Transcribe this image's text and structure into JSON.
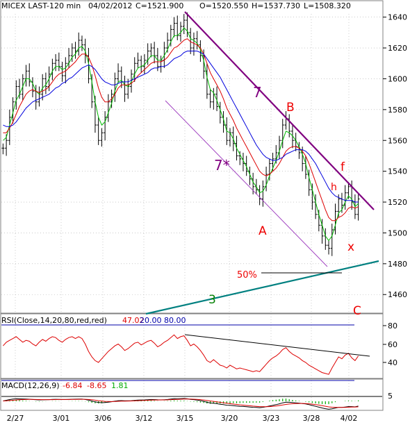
{
  "header": {
    "symbol": "MICEX LAST-120 min",
    "date": "04/02/2012",
    "close": "C=1521.900",
    "open": "O=1520.550",
    "high": "H=1537.730",
    "low": "L=1508.320"
  },
  "colors": {
    "price_bar": "#000000",
    "ma_fast": "#00bb00",
    "ma_mid": "#dd0000",
    "ma_slow": "#0000dd",
    "trendline": "#800080",
    "support_line": "#008080",
    "wave_red": "#ee0000",
    "wave_purple": "#800080",
    "wave_green": "#008000",
    "rsi_line": "#dd0000",
    "macd_a": "#000000",
    "macd_b": "#dd0000",
    "macd_hist": "#00aa00",
    "grid": "#aaaaaa",
    "rsi_band": "#0000aa"
  },
  "annotations": {
    "seven_top": "7",
    "seven_star": "7*",
    "b": "B",
    "a": "A",
    "f": "f",
    "h": "h",
    "x": "x",
    "three": "3",
    "c": "C",
    "fifty": "50%"
  },
  "rsi": {
    "label": "RSI(Close,14,20,80,red,red)",
    "value": "47.02",
    "low": "20.00",
    "high": "80.00",
    "ticks": [
      "80",
      "60",
      "40"
    ]
  },
  "macd": {
    "label": "MACD(12,26,9)",
    "v1": "-6.84",
    "v2": "-8.65",
    "v3": "1.81",
    "tick": "5"
  },
  "chart_data": {
    "type": "line",
    "title": "MICEX LAST-120 min",
    "x_tick_labels": [
      "2/27",
      "3/01",
      "3/06",
      "3/12",
      "3/15",
      "3/20",
      "3/23",
      "3/28",
      "4/02"
    ],
    "y_tick_labels": [
      "1640",
      "1620",
      "1600",
      "1580",
      "1560",
      "1540",
      "1520",
      "1500",
      "1480",
      "1460"
    ],
    "ylim": [
      1452,
      1643
    ],
    "grid": true,
    "series": [
      {
        "kind": "price",
        "values": [
          1555,
          1560,
          1575,
          1585,
          1595,
          1590,
          1600,
          1605,
          1598,
          1592,
          1585,
          1590,
          1600,
          1595,
          1603,
          1610,
          1612,
          1608,
          1602,
          1610,
          1615,
          1620,
          1618,
          1625,
          1622,
          1615,
          1600,
          1585,
          1570,
          1560,
          1565,
          1575,
          1585,
          1590,
          1600,
          1605,
          1598,
          1590,
          1595,
          1603,
          1610,
          1612,
          1608,
          1612,
          1618,
          1620,
          1615,
          1608,
          1612,
          1620,
          1625,
          1632,
          1636,
          1628,
          1634,
          1638,
          1630,
          1620,
          1626,
          1622,
          1615,
          1605,
          1590,
          1585,
          1590,
          1582,
          1575,
          1570,
          1560,
          1565,
          1558,
          1550,
          1548,
          1545,
          1540,
          1535,
          1530,
          1528,
          1522,
          1530,
          1538,
          1545,
          1548,
          1552,
          1560,
          1570,
          1574,
          1566,
          1560,
          1556,
          1552,
          1545,
          1538,
          1528,
          1520,
          1512,
          1505,
          1498,
          1492,
          1490,
          1502,
          1514,
          1522,
          1518,
          1526,
          1530,
          1520,
          1512,
          1522
        ]
      },
      {
        "kind": "ma",
        "name": "",
        "values": [
          1560,
          1562,
          1570,
          1578,
          1586,
          1590,
          1595,
          1600,
          1600,
          1597,
          1592,
          1590,
          1594,
          1596,
          1600,
          1605,
          1608,
          1608,
          1606,
          1607,
          1610,
          1614,
          1616,
          1620,
          1621,
          1618,
          1610,
          1598,
          1585,
          1575,
          1570,
          1572,
          1578,
          1584,
          1592,
          1598,
          1599,
          1596,
          1595,
          1598,
          1603,
          1607,
          1608,
          1609,
          1612,
          1615,
          1615,
          1612,
          1612,
          1615,
          1619,
          1624,
          1628,
          1628,
          1630,
          1633,
          1631,
          1626,
          1625,
          1623,
          1619,
          1612,
          1601,
          1593,
          1591,
          1586,
          1580,
          1574,
          1566,
          1565,
          1561,
          1555,
          1551,
          1547,
          1543,
          1538,
          1533,
          1530,
          1526,
          1527,
          1531,
          1537,
          1542,
          1547,
          1553,
          1560,
          1566,
          1565,
          1563,
          1560,
          1556,
          1551,
          1545,
          1536,
          1528,
          1520,
          1512,
          1505,
          1498,
          1495,
          1498,
          1505,
          1513,
          1515,
          1520,
          1524,
          1522,
          1517,
          1519
        ]
      },
      {
        "kind": "ma",
        "name": "",
        "values": [
          1565,
          1565,
          1568,
          1572,
          1577,
          1582,
          1586,
          1590,
          1592,
          1593,
          1592,
          1591,
          1592,
          1593,
          1595,
          1598,
          1601,
          1603,
          1604,
          1605,
          1607,
          1609,
          1611,
          1614,
          1616,
          1616,
          1614,
          1609,
          1602,
          1594,
          1588,
          1585,
          1585,
          1587,
          1590,
          1594,
          1596,
          1596,
          1596,
          1597,
          1599,
          1602,
          1604,
          1606,
          1608,
          1610,
          1611,
          1611,
          1611,
          1612,
          1614,
          1617,
          1620,
          1621,
          1623,
          1625,
          1626,
          1624,
          1623,
          1622,
          1620,
          1616,
          1610,
          1604,
          1600,
          1596,
          1592,
          1587,
          1581,
          1577,
          1573,
          1568,
          1564,
          1560,
          1556,
          1552,
          1548,
          1544,
          1540,
          1538,
          1537,
          1538,
          1540,
          1542,
          1545,
          1549,
          1553,
          1555,
          1556,
          1556,
          1555,
          1553,
          1550,
          1545,
          1539,
          1533,
          1527,
          1521,
          1515,
          1510,
          1508,
          1508,
          1510,
          1511,
          1513,
          1516,
          1517,
          1516,
          1517
        ]
      },
      {
        "kind": "ma",
        "name": "",
        "values": [
          1570,
          1569,
          1569,
          1570,
          1572,
          1575,
          1578,
          1581,
          1583,
          1585,
          1586,
          1587,
          1588,
          1589,
          1590,
          1592,
          1594,
          1595,
          1597,
          1598,
          1600,
          1601,
          1603,
          1605,
          1607,
          1608,
          1609,
          1608,
          1606,
          1603,
          1600,
          1598,
          1597,
          1596,
          1596,
          1597,
          1598,
          1598,
          1598,
          1599,
          1600,
          1601,
          1602,
          1603,
          1604,
          1606,
          1607,
          1607,
          1608,
          1608,
          1609,
          1611,
          1613,
          1614,
          1615,
          1617,
          1618,
          1618,
          1618,
          1618,
          1617,
          1616,
          1613,
          1610,
          1607,
          1604,
          1601,
          1597,
          1593,
          1589,
          1585,
          1581,
          1577,
          1573,
          1569,
          1565,
          1561,
          1557,
          1554,
          1551,
          1549,
          1548,
          1547,
          1547,
          1548,
          1549,
          1551,
          1552,
          1553,
          1554,
          1554,
          1554,
          1553,
          1551,
          1548,
          1545,
          1541,
          1537,
          1533,
          1529,
          1526,
          1524,
          1523,
          1522,
          1521,
          1521,
          1521,
          1520,
          1520
        ]
      }
    ],
    "rsi_values": [
      58,
      62,
      64,
      66,
      68,
      65,
      62,
      64,
      63,
      60,
      58,
      62,
      65,
      63,
      66,
      68,
      67,
      64,
      62,
      65,
      67,
      68,
      66,
      68,
      66,
      60,
      52,
      46,
      42,
      40,
      44,
      48,
      52,
      55,
      58,
      60,
      57,
      53,
      55,
      58,
      61,
      62,
      59,
      61,
      63,
      64,
      61,
      57,
      59,
      62,
      64,
      67,
      70,
      66,
      68,
      69,
      64,
      58,
      60,
      57,
      53,
      48,
      42,
      40,
      43,
      40,
      37,
      36,
      34,
      37,
      35,
      33,
      34,
      33,
      32,
      31,
      30,
      31,
      30,
      34,
      38,
      42,
      45,
      47,
      50,
      54,
      56,
      52,
      49,
      47,
      45,
      42,
      40,
      37,
      35,
      33,
      31,
      29,
      28,
      27,
      34,
      40,
      46,
      44,
      48,
      50,
      45,
      42,
      47
    ],
    "macd_values": [
      0.5,
      1.5,
      2.5,
      3.2,
      3.6,
      3.5,
      3.4,
      3.3,
      3.0,
      2.6,
      2.2,
      2.0,
      2.1,
      2.2,
      2.4,
      2.7,
      2.9,
      2.8,
      2.6,
      2.6,
      2.8,
      3.0,
      3.1,
      3.3,
      3.2,
      2.6,
      1.6,
      0.4,
      -0.8,
      -1.6,
      -2.0,
      -1.8,
      -1.2,
      -0.6,
      0.2,
      0.9,
      1.0,
      0.8,
      0.7,
      0.9,
      1.4,
      1.8,
      1.9,
      2.0,
      2.3,
      2.6,
      2.5,
      2.2,
      2.1,
      2.3,
      2.6,
      3.2,
      3.7,
      3.6,
      3.8,
      4.0,
      3.6,
      2.8,
      2.4,
      1.8,
      1.0,
      0.0,
      -1.4,
      -2.4,
      -2.8,
      -3.4,
      -4.2,
      -4.8,
      -5.6,
      -5.8,
      -6.2,
      -6.8,
      -7.2,
      -7.4,
      -7.8,
      -8.2,
      -8.6,
      -8.8,
      -9.2,
      -8.6,
      -7.8,
      -6.8,
      -5.8,
      -4.8,
      -3.6,
      -2.2,
      -1.2,
      -1.4,
      -1.8,
      -2.2,
      -2.6,
      -3.2,
      -3.8,
      -4.8,
      -6.0,
      -7.2,
      -8.4,
      -9.6,
      -10.6,
      -11.4,
      -10.8,
      -9.8,
      -8.8,
      -8.8,
      -8.2,
      -7.6,
      -7.6,
      -8.0,
      -6.8
    ]
  }
}
